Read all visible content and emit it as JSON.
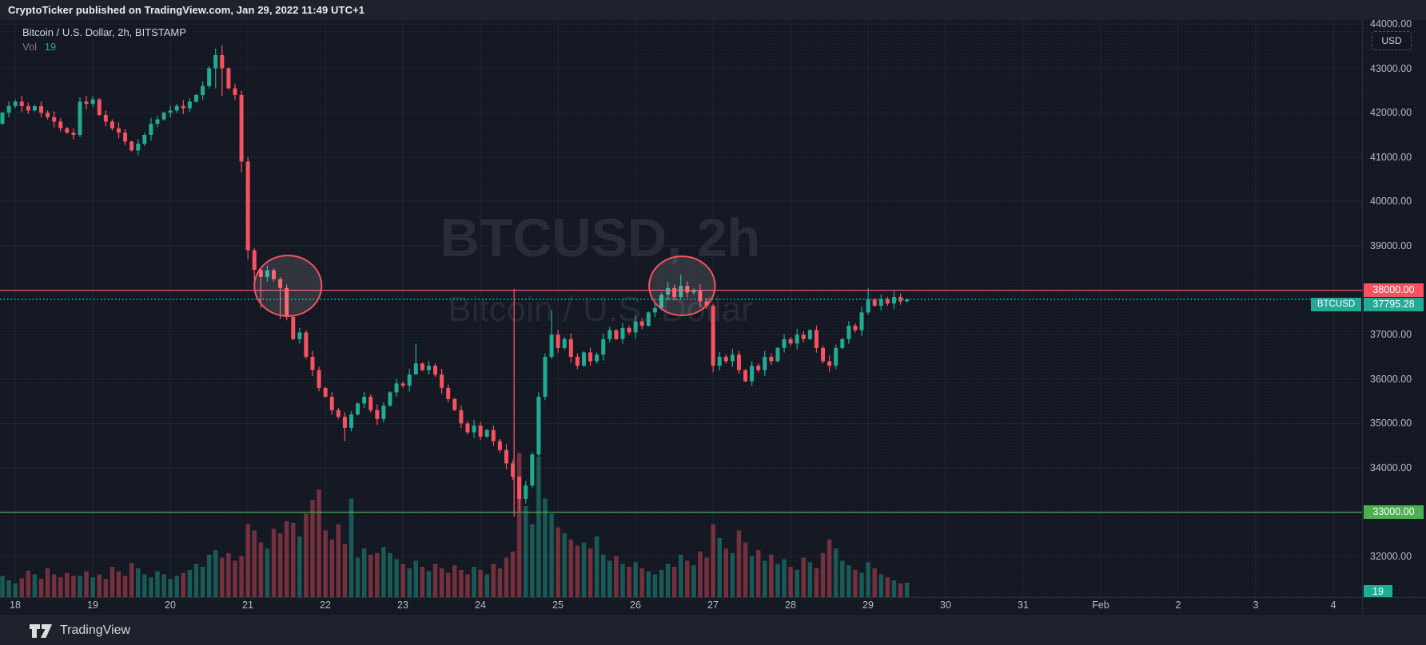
{
  "attribution": "CryptoTicker published on TradingView.com, Jan 29, 2022 11:49 UTC+1",
  "legend": {
    "symbol_line": "Bitcoin / U.S. Dollar, 2h, BITSTAMP",
    "vol_label": "Vol",
    "vol_value": "19"
  },
  "watermark": {
    "line1": "BTCUSD, 2h",
    "line2": "Bitcoin / U.S. Dollar"
  },
  "price_axis": {
    "currency_button": "USD",
    "price_line_label": "38000.00",
    "last_price_label": "37795.28",
    "last_price_ticker": "BTCUSD",
    "support_label": "33000.00",
    "volume_label": "19"
  },
  "footer": {
    "logo_text": "TradingView"
  },
  "colors": {
    "up": "#22ab94",
    "down": "#f7525f",
    "vol_up": "rgba(34,171,148,0.45)",
    "vol_down": "rgba(247,82,95,0.42)",
    "grid": "#1e2532",
    "level_red": "#f7525f",
    "level_teal_dotted": "#22ab94",
    "level_green": "#4caf50",
    "ellipse_stroke": "#f7525f",
    "ellipse_fill": "rgba(255,255,255,0.12)"
  },
  "chart_data": {
    "type": "candlestick",
    "symbol": "BTCUSD",
    "exchange": "BITSTAMP",
    "interval": "2h",
    "first_candle_time": "Jan 17 2022 20:00",
    "last_candle_time": "Jan 29 2022 10:00",
    "ylim": [
      31100,
      44100
    ],
    "y_ticks": [
      44000,
      43000,
      42000,
      41000,
      40000,
      39000,
      38000,
      37000,
      36000,
      35000,
      34000,
      33000,
      32000
    ],
    "x_day_labels": [
      "18",
      "19",
      "20",
      "21",
      "22",
      "23",
      "24",
      "25",
      "26",
      "27",
      "28",
      "29",
      "30",
      "31",
      "Feb",
      "2",
      "3",
      "4"
    ],
    "first_open": 41750,
    "closes": [
      42000,
      42150,
      42250,
      42150,
      42050,
      42150,
      42000,
      41900,
      41800,
      41650,
      41550,
      41500,
      42250,
      42200,
      42300,
      41950,
      41800,
      41650,
      41550,
      41350,
      41150,
      41300,
      41500,
      41750,
      41850,
      42000,
      42050,
      42150,
      42100,
      42250,
      42400,
      42600,
      43000,
      43300,
      43000,
      42550,
      42400,
      40900,
      38900,
      38460,
      38300,
      38450,
      38250,
      38050,
      37400,
      36900,
      37050,
      36500,
      36200,
      35800,
      35600,
      35300,
      35150,
      34900,
      35200,
      35450,
      35600,
      35300,
      35100,
      35400,
      35700,
      35900,
      35850,
      36100,
      36350,
      36200,
      36300,
      36100,
      35800,
      35550,
      35300,
      35000,
      34800,
      34950,
      34700,
      34850,
      34600,
      34400,
      34100,
      33800,
      33300,
      33600,
      34300,
      35600,
      36500,
      37000,
      36700,
      36900,
      36500,
      36300,
      36600,
      36400,
      36550,
      36900,
      37100,
      36900,
      37150,
      37050,
      37300,
      37200,
      37500,
      37600,
      37900,
      38050,
      37850,
      38100,
      37950,
      38000,
      37750,
      37650,
      36300,
      36500,
      36400,
      36550,
      36200,
      35950,
      36300,
      36200,
      36500,
      36400,
      36700,
      36900,
      36800,
      37000,
      36900,
      37100,
      36700,
      36400,
      36300,
      36700,
      36900,
      37200,
      37100,
      37500,
      37800,
      37650,
      37800,
      37700,
      37850,
      37750,
      37795.28
    ],
    "hl_overrides": {
      "12": [
        42350,
        41450
      ],
      "33": [
        43450,
        42550
      ],
      "34": [
        43520,
        42380
      ],
      "37": [
        42500,
        40650
      ],
      "38": [
        41000,
        38700
      ],
      "39": [
        38950,
        38150
      ],
      "40": [
        38500,
        37600
      ],
      "43": [
        38300,
        37350
      ],
      "53": [
        35250,
        34600
      ],
      "64": [
        36800,
        36100
      ],
      "80": [
        33800,
        33020
      ],
      "83": [
        35700,
        34250
      ],
      "85": [
        37550,
        36450
      ],
      "105": [
        38350,
        37800
      ],
      "110": [
        37700,
        36150
      ],
      "134": [
        38050,
        37450
      ]
    },
    "volumes": [
      28,
      22,
      18,
      25,
      35,
      30,
      24,
      38,
      30,
      26,
      32,
      28,
      28,
      34,
      26,
      30,
      24,
      40,
      34,
      28,
      45,
      38,
      30,
      26,
      34,
      30,
      24,
      28,
      32,
      36,
      44,
      40,
      56,
      62,
      52,
      58,
      48,
      54,
      96,
      88,
      72,
      64,
      90,
      84,
      100,
      98,
      80,
      110,
      128,
      142,
      88,
      76,
      96,
      70,
      130,
      52,
      64,
      56,
      58,
      66,
      58,
      50,
      44,
      38,
      48,
      40,
      34,
      44,
      38,
      32,
      42,
      36,
      30,
      40,
      36,
      30,
      44,
      38,
      52,
      60,
      190,
      120,
      96,
      185,
      130,
      110,
      92,
      84,
      76,
      68,
      72,
      64,
      80,
      56,
      48,
      54,
      44,
      40,
      46,
      38,
      34,
      30,
      36,
      44,
      40,
      56,
      48,
      42,
      60,
      52,
      96,
      78,
      64,
      58,
      88,
      72,
      54,
      62,
      48,
      56,
      44,
      50,
      40,
      36,
      52,
      46,
      38,
      58,
      76,
      64,
      48,
      42,
      36,
      32,
      46,
      38,
      30,
      26,
      22,
      18,
      19
    ],
    "levels": [
      {
        "name": "resistance-line",
        "price": 38000,
        "style": "solid",
        "color_key": "level_red",
        "label": "38000.00"
      },
      {
        "name": "last-price-line",
        "price": 37795.28,
        "style": "dotted",
        "color_key": "level_teal_dotted",
        "label": "37795.28"
      },
      {
        "name": "support-line",
        "price": 33000,
        "style": "solid",
        "color_key": "level_green",
        "label": "33000.00"
      }
    ],
    "annotations": {
      "ellipses": [
        {
          "name": "circle-jan21-retest",
          "center_candle": 44.2,
          "center_price": 38100,
          "rx_candles": 5.2,
          "ry_price": 683
        },
        {
          "name": "circle-jan26-retest",
          "center_candle": 105.2,
          "center_price": 38100,
          "rx_candles": 5.1,
          "ry_price": 665
        }
      ],
      "vline": {
        "name": "crash-marker-jan24",
        "candle": 79.2,
        "from_price": 38030,
        "to_price": 32900
      }
    }
  }
}
